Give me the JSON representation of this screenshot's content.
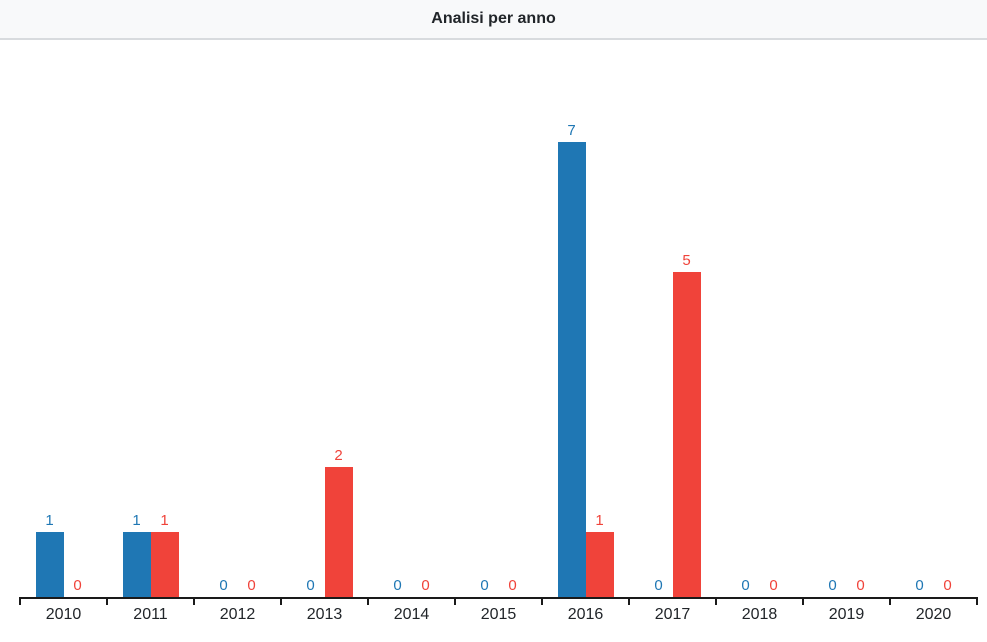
{
  "header": {
    "title": "Analisi per anno"
  },
  "colors": {
    "header_bg": "#f8f9fa",
    "header_border": "#d8dbde",
    "background": "#ffffff",
    "axis": "#1a1a1a",
    "blue": "#1f77b4",
    "red": "#f0433a",
    "year_label": "#212529"
  },
  "chart_data": {
    "type": "bar",
    "title": "Analisi per anno",
    "categories": [
      "2010",
      "2011",
      "2012",
      "2013",
      "2014",
      "2015",
      "2016",
      "2017",
      "2018",
      "2019",
      "2020"
    ],
    "series": [
      {
        "name": "blue-series",
        "color": "#1f77b4",
        "values": [
          1,
          1,
          0,
          0,
          0,
          0,
          7,
          0,
          0,
          0,
          0
        ]
      },
      {
        "name": "red-series",
        "color": "#f0433a",
        "values": [
          0,
          1,
          0,
          2,
          0,
          0,
          1,
          5,
          0,
          0,
          0
        ]
      }
    ],
    "xlabel": "",
    "ylabel": "",
    "ylim": [
      0,
      7
    ],
    "grid": false,
    "legend": "none",
    "value_labels": true
  }
}
